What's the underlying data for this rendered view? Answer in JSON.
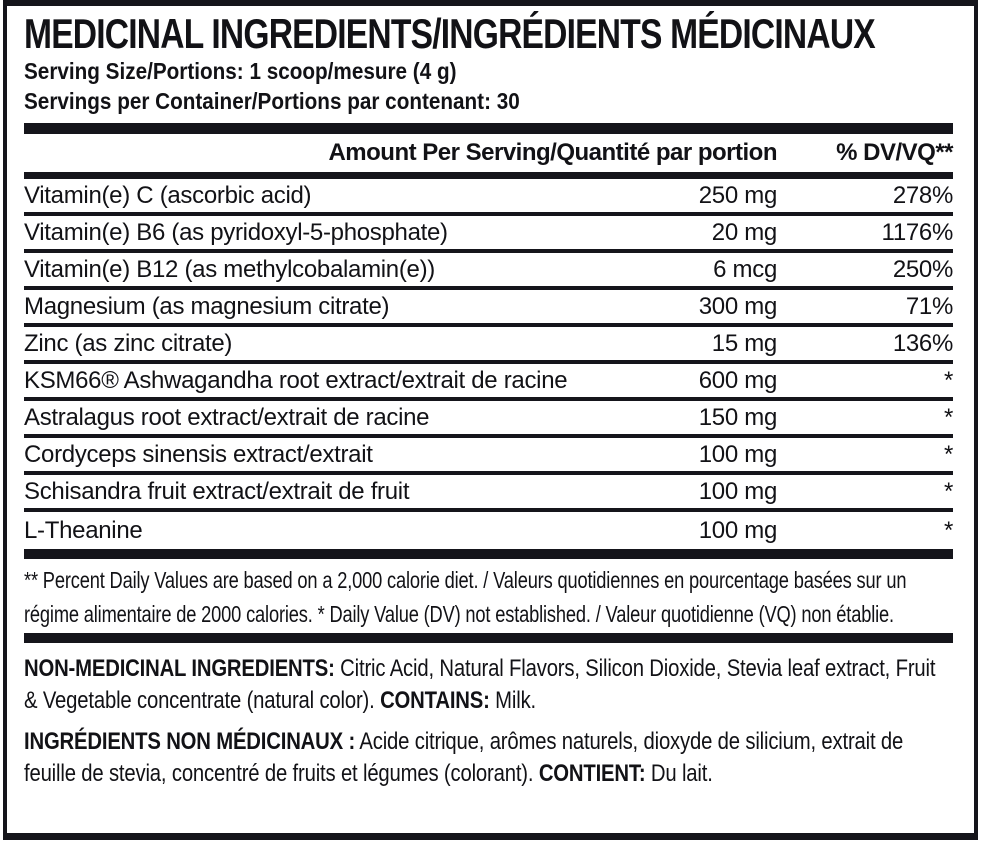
{
  "label": {
    "title": "MEDICINAL INGREDIENTS/INGRÉDIENTS MÉDICINAUX",
    "serving_size": "Serving Size/Portions: 1 scoop/mesure (4 g)",
    "servings_per_container": "Servings per Container/Portions par contenant: 30",
    "table": {
      "header": {
        "amount": "Amount Per Serving/Quantité par portion",
        "dv": "% DV/VQ**"
      },
      "rows": [
        {
          "name": "Vitamin(e) C (ascorbic acid)",
          "amount": "250 mg",
          "dv": "278%"
        },
        {
          "name": "Vitamin(e) B6 (as pyridoxyl-5-phosphate)",
          "amount": "20 mg",
          "dv": "1176%"
        },
        {
          "name": "Vitamin(e) B12 (as methylcobalamin(e))",
          "amount": "6 mcg",
          "dv": "250%"
        },
        {
          "name": "Magnesium (as magnesium citrate)",
          "amount": "300 mg",
          "dv": "71%"
        },
        {
          "name": "Zinc (as zinc citrate)",
          "amount": "15 mg",
          "dv": "136%"
        },
        {
          "name": "KSM66® Ashwagandha root extract/extrait de racine",
          "amount": "600 mg",
          "dv": "*"
        },
        {
          "name": "Astralagus root extract/extrait de racine",
          "amount": "150 mg",
          "dv": "*"
        },
        {
          "name": "Cordyceps sinensis extract/extrait",
          "amount": "100 mg",
          "dv": "*"
        },
        {
          "name": "Schisandra fruit extract/extrait de fruit",
          "amount": "100 mg",
          "dv": "*"
        },
        {
          "name": "L-Theanine",
          "amount": "100 mg",
          "dv": "*"
        }
      ]
    },
    "footnote": "** Percent Daily Values are based on a 2,000 calorie diet. / Valeurs quotidiennes en pourcentage basées sur un régime alimentaire de 2000 calories. * Daily Value (DV) not established. / Valeur quotidienne (VQ) non établie.",
    "non_medicinal": {
      "label_en": "NON-MEDICINAL INGREDIENTS:",
      "text_en": "Citric Acid, Natural Flavors, Silicon Dioxide, Stevia leaf extract, Fruit & Vegetable concentrate (natural color).",
      "contains_label": "CONTAINS:",
      "contains_text": "Milk.",
      "label_fr": "INGRÉDIENTS NON MÉDICINAUX :",
      "text_fr": "Acide citrique, arômes naturels, dioxyde de silicium, extrait de feuille de stevia, concentré de fruits et légumes (colorant).",
      "contient_label": "CONTIENT:",
      "contient_text": "Du lait."
    },
    "colors": {
      "text": "#121216",
      "rule": "#15151b",
      "background": "#ffffff"
    }
  }
}
